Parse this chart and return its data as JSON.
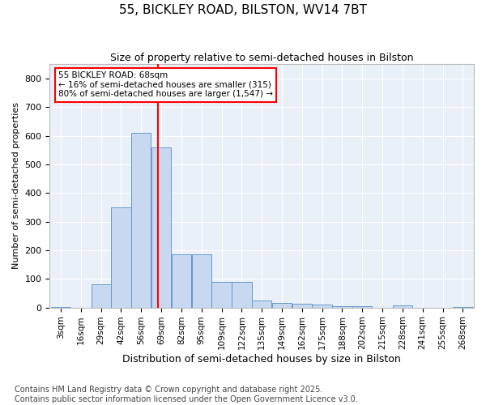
{
  "title": "55, BICKLEY ROAD, BILSTON, WV14 7BT",
  "subtitle": "Size of property relative to semi-detached houses in Bilston",
  "xlabel": "Distribution of semi-detached houses by size in Bilston",
  "ylabel": "Number of semi-detached properties",
  "annotation_title": "55 BICKLEY ROAD: 68sqm",
  "annotation_line1": "← 16% of semi-detached houses are smaller (315)",
  "annotation_line2": "80% of semi-detached houses are larger (1,547) →",
  "property_size": 68,
  "bin_labels": [
    "3sqm",
    "16sqm",
    "29sqm",
    "42sqm",
    "56sqm",
    "69sqm",
    "82sqm",
    "95sqm",
    "109sqm",
    "122sqm",
    "135sqm",
    "149sqm",
    "162sqm",
    "175sqm",
    "188sqm",
    "202sqm",
    "215sqm",
    "228sqm",
    "241sqm",
    "255sqm",
    "268sqm"
  ],
  "bin_starts": [
    0,
    1,
    2,
    3,
    4,
    5,
    6,
    7,
    8,
    9,
    10,
    11,
    12,
    13,
    14,
    15,
    16,
    17,
    18,
    19,
    20
  ],
  "bar_heights": [
    3,
    0,
    80,
    350,
    610,
    560,
    185,
    185,
    90,
    88,
    25,
    15,
    14,
    10,
    5,
    5,
    0,
    7,
    0,
    0,
    2
  ],
  "vline_bin": 4.85,
  "bar_color": "#c8d8f0",
  "bar_edge_color": "#6699cc",
  "vline_color": "red",
  "annotation_box_color": "white",
  "annotation_box_edge_color": "red",
  "background_color": "#eaf0f8",
  "grid_color": "white",
  "ylim": [
    0,
    850
  ],
  "yticks": [
    0,
    100,
    200,
    300,
    400,
    500,
    600,
    700,
    800
  ],
  "footer": "Contains HM Land Registry data © Crown copyright and database right 2025.\nContains public sector information licensed under the Open Government Licence v3.0.",
  "title_fontsize": 11,
  "subtitle_fontsize": 9,
  "ylabel_fontsize": 8,
  "xlabel_fontsize": 9,
  "footer_fontsize": 7
}
